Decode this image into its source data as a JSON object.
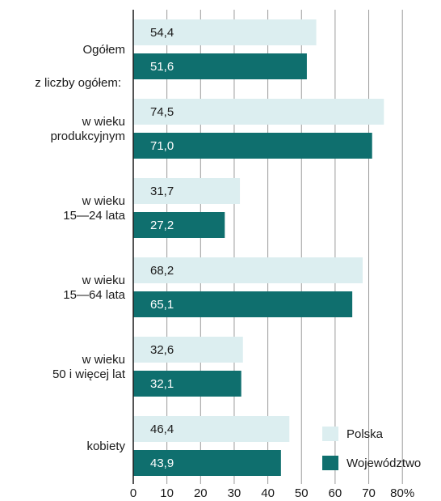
{
  "chart_data": {
    "type": "bar",
    "orientation": "horizontal",
    "x_unit": "%",
    "xlim": [
      0,
      80
    ],
    "x_ticks": [
      "0",
      "10",
      "20",
      "30",
      "40",
      "50",
      "60",
      "70",
      "80%"
    ],
    "grid": "vertical",
    "subheading": "z liczby ogółem:",
    "categories": [
      [
        "Ogółem"
      ],
      [
        "w wieku",
        "produkcyjnym"
      ],
      [
        "w wieku",
        "15—24 lata"
      ],
      [
        "w wieku",
        "15—64 lata"
      ],
      [
        "w wieku",
        "50 i więcej lat"
      ],
      [
        "kobiety"
      ]
    ],
    "series": [
      {
        "name": "Polska",
        "color": "#dceef0",
        "label_color": "#1a1a1a",
        "values": [
          54.4,
          74.5,
          31.7,
          68.2,
          32.6,
          46.4
        ],
        "labels": [
          "54,4",
          "74,5",
          "31,7",
          "68,2",
          "32,6",
          "46,4"
        ]
      },
      {
        "name": "Województwo",
        "color": "#0f6f6e",
        "label_color": "#ffffff",
        "values": [
          51.6,
          71.0,
          27.2,
          65.1,
          32.1,
          43.9
        ],
        "labels": [
          "51,6",
          "71,0",
          "27,2",
          "65,1",
          "32,1",
          "43,9"
        ]
      }
    ],
    "legend_position": "bottom-right",
    "gridline_color": "#9a9a9a",
    "axis_color": "#1a1a1a"
  }
}
